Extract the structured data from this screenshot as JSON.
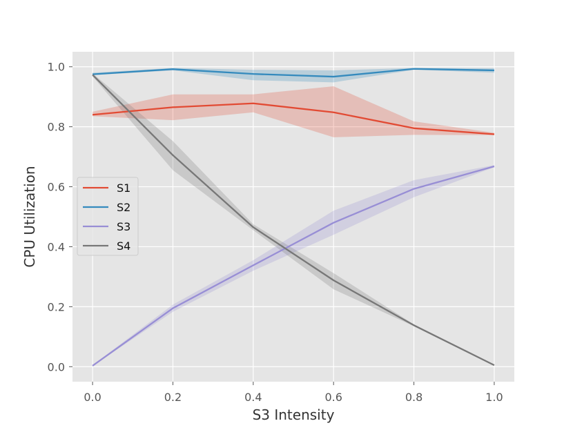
{
  "chart_data": {
    "type": "line",
    "title": "",
    "xlabel": "S3 Intensity",
    "ylabel": "CPU Utilization",
    "xlim": [
      -0.05,
      1.05
    ],
    "ylim": [
      -0.05,
      1.05
    ],
    "xticks": [
      0.0,
      0.2,
      0.4,
      0.6,
      0.8,
      1.0
    ],
    "xtick_labels": [
      "0.0",
      "0.2",
      "0.4",
      "0.6",
      "0.8",
      "1.0"
    ],
    "yticks": [
      0.0,
      0.2,
      0.4,
      0.6,
      0.8,
      1.0
    ],
    "ytick_labels": [
      "0.0",
      "0.2",
      "0.4",
      "0.6",
      "0.8",
      "1.0"
    ],
    "grid": true,
    "legend_position": "center-left",
    "x": [
      0.0,
      0.2,
      0.4,
      0.6,
      0.8,
      1.0
    ],
    "series": [
      {
        "name": "S1",
        "color": "#E24A33",
        "values": [
          0.84,
          0.865,
          0.878,
          0.848,
          0.795,
          0.775
        ],
        "lower": [
          0.835,
          0.822,
          0.848,
          0.765,
          0.773,
          0.772
        ],
        "upper": [
          0.85,
          0.908,
          0.908,
          0.935,
          0.818,
          0.78
        ]
      },
      {
        "name": "S2",
        "color": "#348ABD",
        "values": [
          0.975,
          0.992,
          0.976,
          0.967,
          0.993,
          0.988
        ],
        "lower": [
          0.972,
          0.988,
          0.955,
          0.948,
          0.99,
          0.98
        ],
        "upper": [
          0.98,
          0.996,
          0.99,
          0.988,
          0.996,
          0.995
        ]
      },
      {
        "name": "S3",
        "color": "#988ED5",
        "values": [
          0.003,
          0.195,
          0.338,
          0.48,
          0.593,
          0.668
        ],
        "lower": [
          0.002,
          0.183,
          0.32,
          0.44,
          0.565,
          0.665
        ],
        "upper": [
          0.005,
          0.207,
          0.355,
          0.52,
          0.622,
          0.672
        ]
      },
      {
        "name": "S4",
        "color": "#777777",
        "values": [
          0.973,
          0.705,
          0.465,
          0.288,
          0.138,
          0.005
        ],
        "lower": [
          0.968,
          0.655,
          0.455,
          0.258,
          0.135,
          0.004
        ],
        "upper": [
          0.978,
          0.752,
          0.475,
          0.312,
          0.141,
          0.006
        ]
      }
    ]
  }
}
